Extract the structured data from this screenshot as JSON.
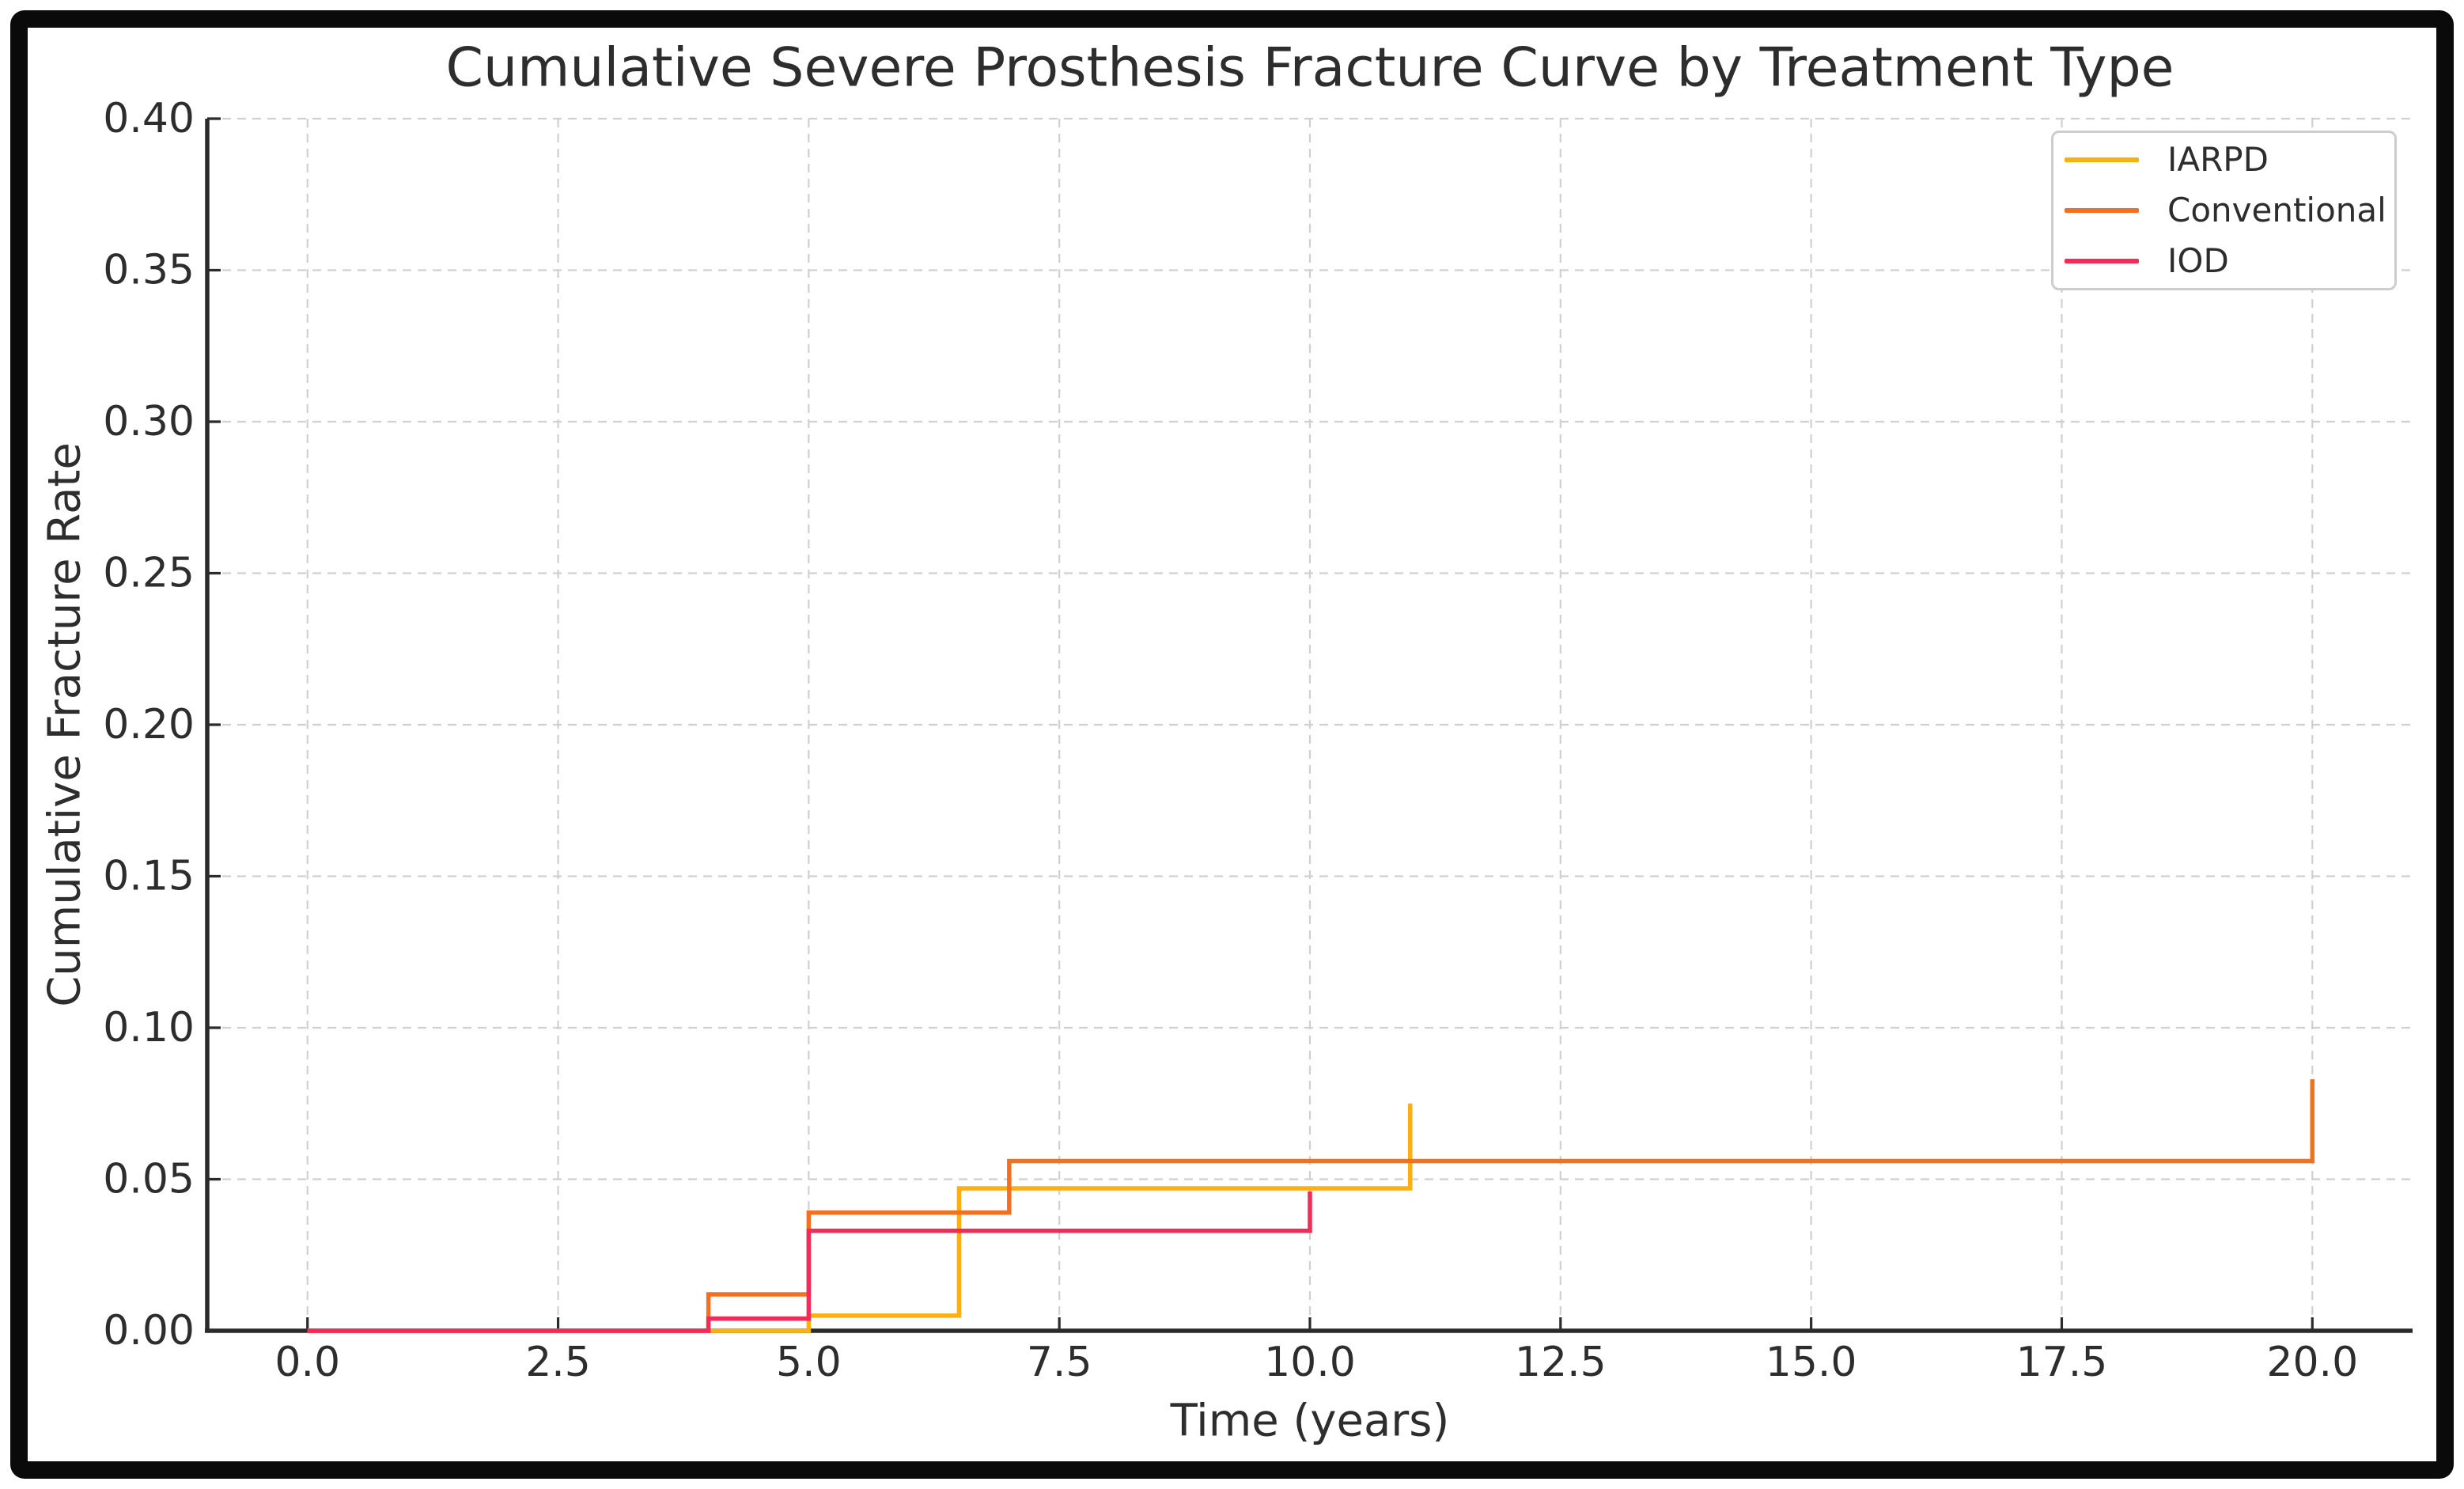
{
  "figure": {
    "title": "Cumulative Severe Prosthesis Fracture Curve by Treatment Type",
    "x_label": "Time (years)",
    "y_label": "Cumulative Fracture Rate"
  },
  "style": {
    "background": "#ffffff",
    "frame_color": "#0a0a0a",
    "text_color": "#2d2d2d",
    "spine_color": "#2b2b2b",
    "grid_color": "#d0d0d0",
    "legend_border_color": "#cdcdcd"
  },
  "chart_data": {
    "type": "line",
    "subtype": "step-post-cumulative-incidence",
    "title": "Cumulative Severe Prosthesis Fracture Curve by Treatment Type",
    "xlabel": "Time (years)",
    "ylabel": "Cumulative Fracture Rate",
    "xlim": [
      -1,
      21
    ],
    "ylim": [
      0,
      0.4
    ],
    "grid": true,
    "grid_style": "dashed",
    "legend_position": "upper right",
    "x_ticks": [
      {
        "v": 0.0,
        "label": "0.0"
      },
      {
        "v": 2.5,
        "label": "2.5"
      },
      {
        "v": 5.0,
        "label": "5.0"
      },
      {
        "v": 7.5,
        "label": "7.5"
      },
      {
        "v": 10.0,
        "label": "10.0"
      },
      {
        "v": 12.5,
        "label": "12.5"
      },
      {
        "v": 15.0,
        "label": "15.0"
      },
      {
        "v": 17.5,
        "label": "17.5"
      },
      {
        "v": 20.0,
        "label": "20.0"
      }
    ],
    "y_ticks": [
      {
        "v": 0.0,
        "label": "0.00"
      },
      {
        "v": 0.05,
        "label": "0.05"
      },
      {
        "v": 0.1,
        "label": "0.10"
      },
      {
        "v": 0.15,
        "label": "0.15"
      },
      {
        "v": 0.2,
        "label": "0.20"
      },
      {
        "v": 0.25,
        "label": "0.25"
      },
      {
        "v": 0.3,
        "label": "0.30"
      },
      {
        "v": 0.35,
        "label": "0.35"
      },
      {
        "v": 0.4,
        "label": "0.40"
      }
    ],
    "series": [
      {
        "name": "IARPD",
        "color": "#FCAF13",
        "points": [
          [
            0,
            0.0
          ],
          [
            5,
            0.005
          ],
          [
            6.5,
            0.047
          ],
          [
            11,
            0.075
          ]
        ]
      },
      {
        "name": "Conventional",
        "color": "#F4701E",
        "points": [
          [
            0,
            0.0
          ],
          [
            4,
            0.012
          ],
          [
            5,
            0.039
          ],
          [
            7,
            0.056
          ],
          [
            20,
            0.083
          ]
        ]
      },
      {
        "name": "IOD",
        "color": "#F22C59",
        "points": [
          [
            0,
            0.0
          ],
          [
            4,
            0.004
          ],
          [
            5,
            0.033
          ],
          [
            10,
            0.046
          ]
        ]
      }
    ]
  }
}
